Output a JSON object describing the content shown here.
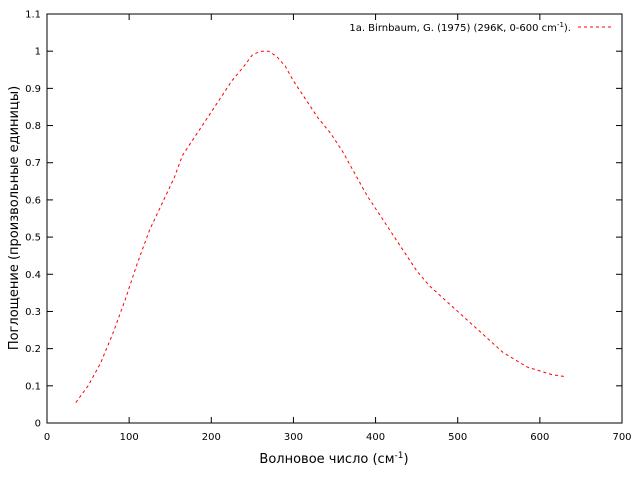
{
  "chart_data": {
    "type": "line",
    "xlabel": "Волновое число (см",
    "xlabel_sup": "-1",
    "xlabel_tail": ")",
    "ylabel": "Поглощение (произвольные единицы)",
    "xlim": [
      0,
      700
    ],
    "ylim": [
      0,
      1.1
    ],
    "xticks": [
      "0",
      "100",
      "200",
      "300",
      "400",
      "500",
      "600",
      "700"
    ],
    "yticks": [
      "0",
      "0.1",
      "0.2",
      "0.3",
      "0.4",
      "0.5",
      "0.6",
      "0.7",
      "0.8",
      "0.9",
      "1",
      "1.1"
    ],
    "grid": false,
    "legend_position": "top-right",
    "series": [
      {
        "name": "1a. Birnbaum, G. (1975) (296K, 0-600 cm",
        "name_sup": "-1",
        "name_tail": ").",
        "color": "#ff0000",
        "line_style": "dashed",
        "x": [
          35,
          50,
          65,
          80,
          95,
          110,
          125,
          140,
          155,
          165,
          180,
          195,
          210,
          225,
          240,
          250,
          260,
          270,
          280,
          290,
          300,
          315,
          330,
          345,
          360,
          375,
          390,
          405,
          420,
          435,
          450,
          465,
          480,
          495,
          510,
          525,
          540,
          555,
          570,
          585,
          600,
          615,
          630
        ],
        "y": [
          0.055,
          0.1,
          0.16,
          0.24,
          0.33,
          0.43,
          0.52,
          0.59,
          0.66,
          0.72,
          0.77,
          0.82,
          0.87,
          0.92,
          0.96,
          0.99,
          1.0,
          1.0,
          0.985,
          0.96,
          0.92,
          0.87,
          0.82,
          0.78,
          0.73,
          0.67,
          0.61,
          0.56,
          0.51,
          0.46,
          0.41,
          0.37,
          0.34,
          0.31,
          0.28,
          0.25,
          0.22,
          0.19,
          0.17,
          0.15,
          0.14,
          0.13,
          0.125
        ]
      }
    ]
  }
}
